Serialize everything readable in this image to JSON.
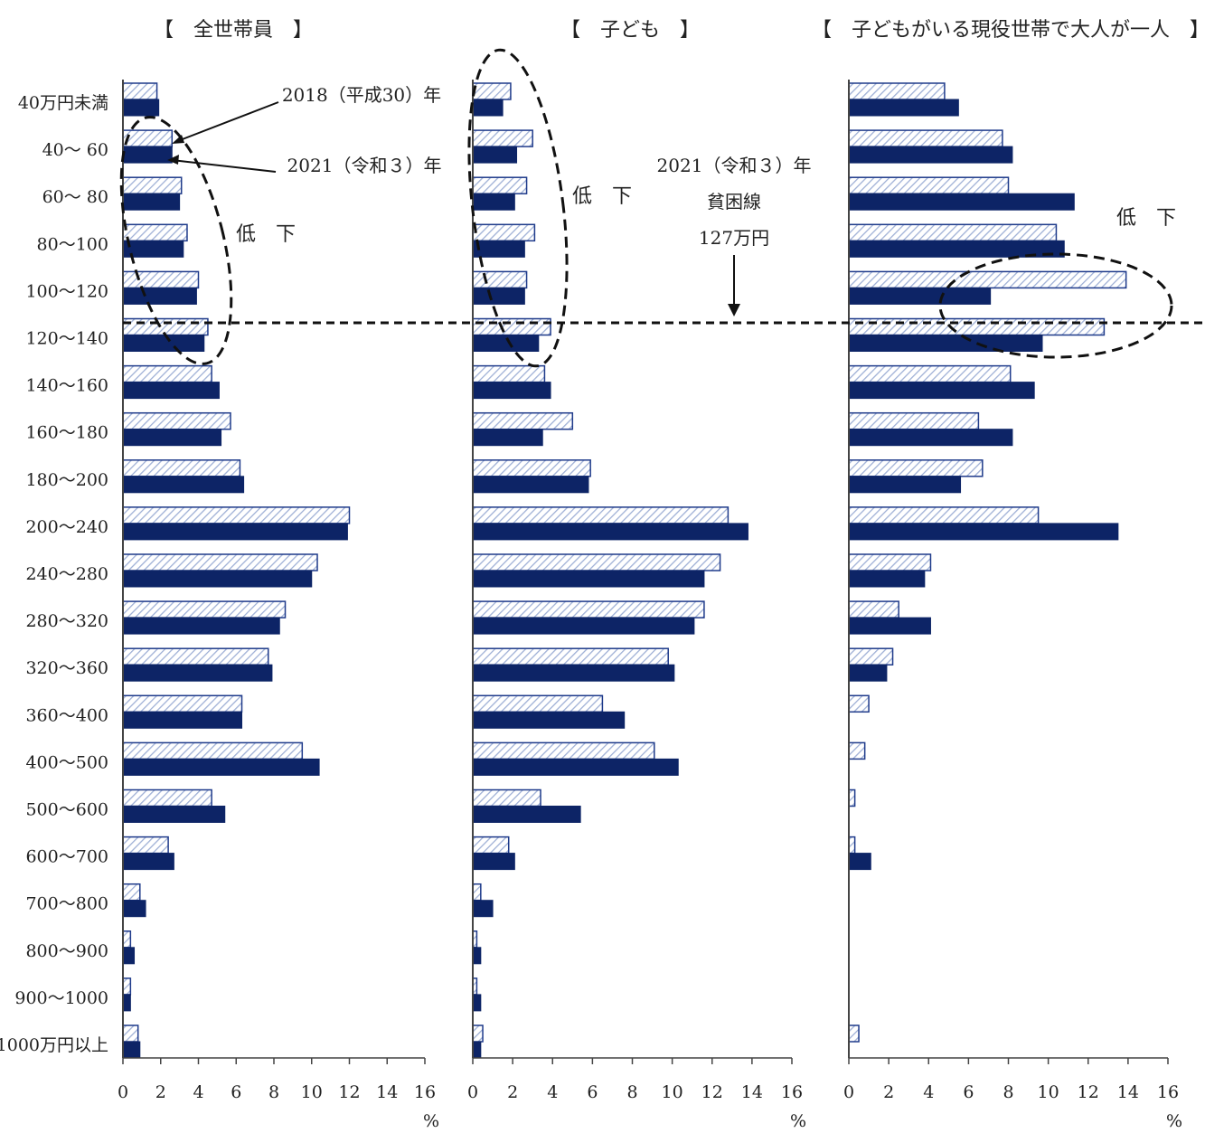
{
  "colors": {
    "y2021": "#0d2466",
    "y2018_stroke": "#1e3a8a",
    "y2018_hatch": "#9fb0d6"
  },
  "annotations": {
    "y2018": "2018（平成30）年",
    "y2021": "2021（令和３）年",
    "decline": "低　下",
    "poverty_line": [
      "2021（令和３）年",
      "貧困線",
      "127万円"
    ]
  },
  "chart_data": [
    {
      "type": "bar",
      "title": "【　全世帯員　】",
      "xlabel": "%",
      "xlim": [
        0,
        16
      ],
      "xticks": [
        "0",
        "2",
        "4",
        "6",
        "8",
        "10",
        "12",
        "14",
        "16"
      ],
      "categories": [
        "40万円未満",
        "40～ 60",
        "60～ 80",
        "80～100",
        "100～120",
        "120～140",
        "140～160",
        "160～180",
        "180～200",
        "200～240",
        "240～280",
        "280～320",
        "320～360",
        "360～400",
        "400～500",
        "500～600",
        "600～700",
        "700～800",
        "800～900",
        "900～1000",
        "1000万円以上"
      ],
      "series": [
        {
          "name": "2018（平成30）年",
          "values": [
            1.8,
            2.6,
            3.1,
            3.4,
            4.0,
            4.5,
            4.7,
            5.7,
            6.2,
            12.0,
            10.3,
            8.6,
            7.7,
            6.3,
            9.5,
            4.7,
            2.4,
            0.9,
            0.4,
            0.4,
            0.8
          ]
        },
        {
          "name": "2021（令和３）年",
          "values": [
            1.9,
            2.6,
            3.0,
            3.2,
            3.9,
            4.3,
            5.1,
            5.2,
            6.4,
            11.9,
            10.0,
            8.3,
            7.9,
            6.3,
            10.4,
            5.4,
            2.7,
            1.2,
            0.6,
            0.4,
            0.9
          ]
        }
      ]
    },
    {
      "type": "bar",
      "title": "【　子ども　】",
      "xlabel": "%",
      "xlim": [
        0,
        16
      ],
      "xticks": [
        "0",
        "2",
        "4",
        "6",
        "8",
        "10",
        "12",
        "14",
        "16"
      ],
      "categories": [
        "40万円未満",
        "40～ 60",
        "60～ 80",
        "80～100",
        "100～120",
        "120～140",
        "140～160",
        "160～180",
        "180～200",
        "200～240",
        "240～280",
        "280～320",
        "320～360",
        "360～400",
        "400～500",
        "500～600",
        "600～700",
        "700～800",
        "800～900",
        "900～1000",
        "1000万円以上"
      ],
      "series": [
        {
          "name": "2018（平成30）年",
          "values": [
            1.9,
            3.0,
            2.7,
            3.1,
            2.7,
            3.9,
            3.6,
            5.0,
            5.9,
            12.8,
            12.4,
            11.6,
            9.8,
            6.5,
            9.1,
            3.4,
            1.8,
            0.4,
            0.2,
            0.2,
            0.5
          ]
        },
        {
          "name": "2021（令和３）年",
          "values": [
            1.5,
            2.2,
            2.1,
            2.6,
            2.6,
            3.3,
            3.9,
            3.5,
            5.8,
            13.8,
            11.6,
            11.1,
            10.1,
            7.6,
            10.3,
            5.4,
            2.1,
            1.0,
            0.4,
            0.4,
            0.4
          ]
        }
      ]
    },
    {
      "type": "bar",
      "title": "【　子どもがいる現役世帯で大人が一人　】",
      "xlabel": "%",
      "xlim": [
        0,
        16
      ],
      "xticks": [
        "0",
        "2",
        "4",
        "6",
        "8",
        "10",
        "12",
        "14",
        "16"
      ],
      "categories": [
        "40万円未満",
        "40～ 60",
        "60～ 80",
        "80～100",
        "100～120",
        "120～140",
        "140～160",
        "160～180",
        "180～200",
        "200～240",
        "240～280",
        "280～320",
        "320～360",
        "360～400",
        "400～500",
        "500～600",
        "600～700",
        "700～800",
        "800～900",
        "900～1000",
        "1000万円以上"
      ],
      "series": [
        {
          "name": "2018（平成30）年",
          "values": [
            4.8,
            7.7,
            8.0,
            10.4,
            13.9,
            12.8,
            8.1,
            6.5,
            6.7,
            9.5,
            4.1,
            2.5,
            2.2,
            1.0,
            0.8,
            0.3,
            0.3,
            0,
            0,
            0,
            0.5
          ]
        },
        {
          "name": "2021（令和３）年",
          "values": [
            5.5,
            8.2,
            11.3,
            10.8,
            7.1,
            9.7,
            9.3,
            8.2,
            5.6,
            13.5,
            3.8,
            4.1,
            1.9,
            0,
            0,
            0,
            1.1,
            0,
            0,
            0,
            0
          ]
        }
      ]
    }
  ]
}
